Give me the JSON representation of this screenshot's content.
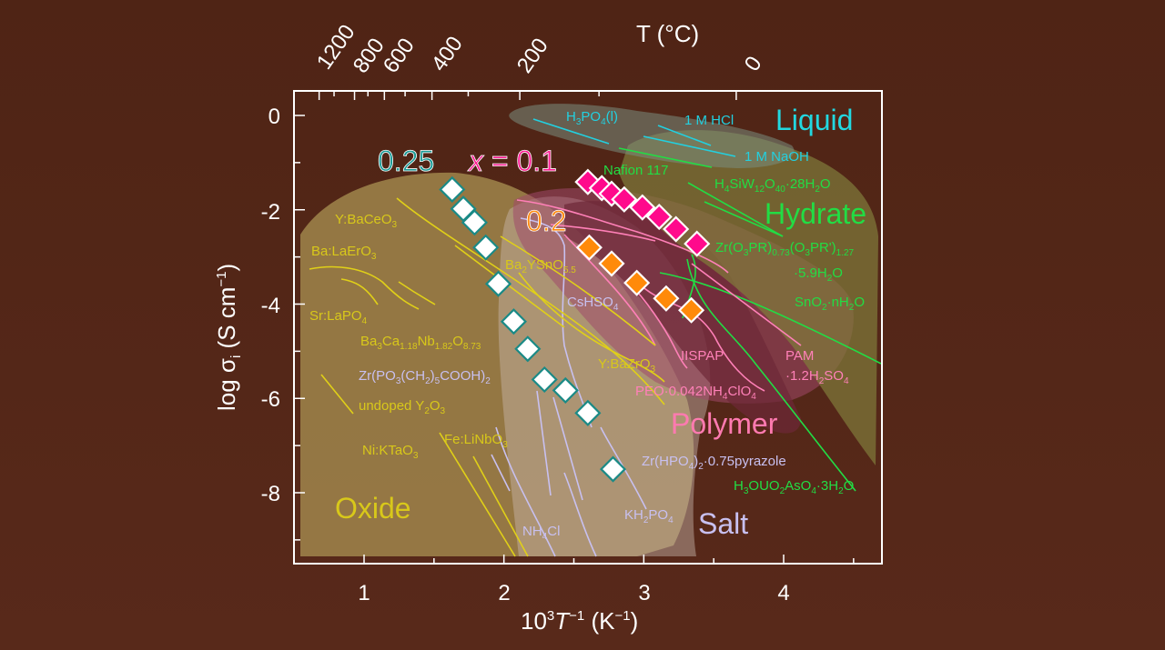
{
  "chart_data": {
    "type": "scatter",
    "title": "",
    "xlabel": "10³T⁻¹ (K⁻¹)",
    "ylabel": "log σi (S cm⁻¹)",
    "top_axis_label": "T (°C)",
    "xlim": [
      0.5,
      4.7
    ],
    "ylim": [
      -9.4,
      0.5
    ],
    "grid": false,
    "x_ticks": [
      "1",
      "2",
      "3",
      "4"
    ],
    "y_ticks": [
      "0",
      "-2",
      "-4",
      "-6",
      "-8"
    ],
    "top_ticks": [
      "1200",
      "800",
      "600",
      "400",
      "200",
      "0"
    ],
    "series": [
      {
        "name": "0.25",
        "color": "#ffffff",
        "edge": "#1a8a86",
        "label_color": "#1a9a96",
        "x": [
          1.63,
          1.71,
          1.79,
          1.87,
          1.96,
          2.07,
          2.17,
          2.29,
          2.44,
          2.6,
          2.78
        ],
        "y": [
          -1.57,
          -1.98,
          -2.27,
          -2.8,
          -3.57,
          -4.37,
          -4.95,
          -5.6,
          -5.83,
          -6.31,
          -7.5
        ]
      },
      {
        "name": "x = 0.1",
        "color": "#ff0a8c",
        "edge": "#ffffff",
        "label_color": "#ff1a90",
        "x": [
          2.6,
          2.7,
          2.77,
          2.86,
          2.99,
          3.11,
          3.23,
          3.38
        ],
        "y": [
          -1.41,
          -1.54,
          -1.66,
          -1.78,
          -1.95,
          -2.15,
          -2.41,
          -2.72
        ]
      },
      {
        "name": "0.2",
        "color": "#ff8a0a",
        "edge": "#ffffff",
        "label_color": "#ff8a10",
        "x": [
          2.61,
          2.77,
          2.95,
          3.16,
          3.34
        ],
        "y": [
          -2.8,
          -3.14,
          -3.55,
          -3.88,
          -4.13
        ]
      }
    ],
    "regions": [
      {
        "name": "Liquid",
        "color": "#22d8e0"
      },
      {
        "name": "Hydrate",
        "color": "#22dd44"
      },
      {
        "name": "Polymer",
        "color": "#ff7ab0"
      },
      {
        "name": "Salt",
        "color": "#c8c0f0"
      },
      {
        "name": "Oxide",
        "color": "#d8c81a"
      }
    ],
    "annotations": {
      "liquid": [
        "H3PO4(l)",
        "1 M HCl",
        "1 M NaOH"
      ],
      "hydrate": [
        "Nafion 117",
        "H4SiW12O40·28H2O",
        "Zr(O3PR)0.73(O3PR')1.27·5.9H2O",
        "SnO2·nH2O",
        "H3OUO2AsO4·3H2O"
      ],
      "polymer": [
        "IISPAP",
        "PAM·1.2H2SO4",
        "PEO·0.042NH4ClO4"
      ],
      "salt": [
        "CsHSO4",
        "Zr(PO3(CH2)5COOH)2",
        "Zr(HPO4)2·0.75pyrazole",
        "KH2PO4",
        "NH4Cl"
      ],
      "oxide": [
        "Y:BaCeO3",
        "Ba:LaErO3",
        "Sr:LaPO4",
        "Ba3Ca1.18Nb1.82O8.73",
        "undoped Y2O3",
        "Ni:KTaO3",
        "Fe:LiNbO3",
        "Ba2YSnO5.5",
        "Y:BaZrO3"
      ]
    }
  },
  "labels": {
    "top_axis_title": "T (°C)",
    "top_ticks": [
      "1200",
      "800",
      "600",
      "400",
      "200",
      "0"
    ],
    "x_ticks": [
      "1",
      "2",
      "3",
      "4"
    ],
    "y_ticks": [
      "0",
      "-2",
      "-4",
      "-6",
      "-8"
    ],
    "series_025": "0.25",
    "series_01_x": "x",
    "series_01_rest": " = 0.1",
    "series_02": "0.2",
    "region_liquid": "Liquid",
    "region_hydrate": "Hydrate",
    "region_polymer": "Polymer",
    "region_salt": "Salt",
    "region_oxide": "Oxide"
  }
}
